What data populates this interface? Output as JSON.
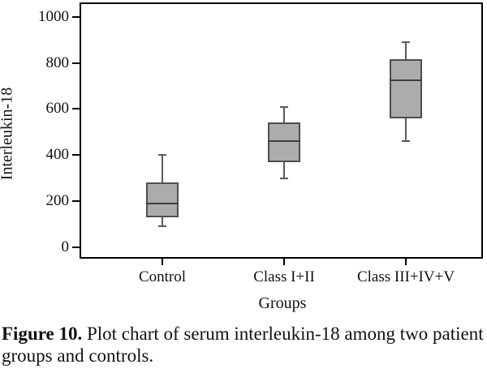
{
  "figure": {
    "caption_label": "Figure 10.",
    "caption_text": "Plot chart of serum interleukin-18 among two patient groups and controls."
  },
  "chart_data": {
    "type": "boxplot",
    "title": "",
    "ylabel": "Interleukin-18",
    "xlabel": "Groups",
    "categories": [
      "Control",
      "Class I+II",
      "Class III+IV+V"
    ],
    "yticks": [
      0,
      200,
      400,
      600,
      800,
      1000
    ],
    "ylim": [
      0,
      1000
    ],
    "grid": false,
    "legend": false,
    "series": [
      {
        "name": "Control",
        "whisker_low": 90,
        "q1": 130,
        "median": 190,
        "q3": 280,
        "whisker_high": 400
      },
      {
        "name": "Class I+II",
        "whisker_low": 300,
        "q1": 370,
        "median": 460,
        "q3": 540,
        "whisker_high": 610
      },
      {
        "name": "Class III+IV+V",
        "whisker_low": 460,
        "q1": 560,
        "median": 725,
        "q3": 815,
        "whisker_high": 890
      }
    ],
    "colors": {
      "box_fill": "#ACACAC",
      "box_border": "#4E4E4E",
      "median_line": "#3E3E3E",
      "whisker": "#5A5A5A",
      "axis": "#000000",
      "text": "#111111"
    }
  }
}
